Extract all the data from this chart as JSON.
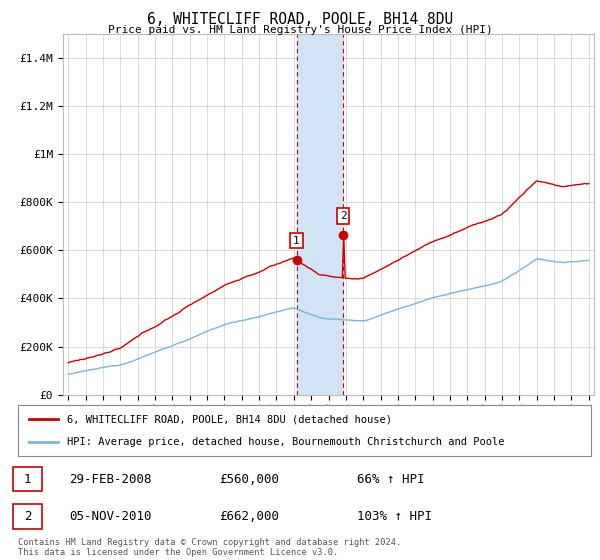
{
  "title": "6, WHITECLIFF ROAD, POOLE, BH14 8DU",
  "subtitle": "Price paid vs. HM Land Registry's House Price Index (HPI)",
  "ylabel_ticks": [
    "£0",
    "£200K",
    "£400K",
    "£600K",
    "£800K",
    "£1M",
    "£1.2M",
    "£1.4M"
  ],
  "ytick_values": [
    0,
    200000,
    400000,
    600000,
    800000,
    1000000,
    1200000,
    1400000
  ],
  "ylim": [
    0,
    1500000
  ],
  "transaction1_date": 2008.16,
  "transaction1_price": 560000,
  "transaction1_label": "1",
  "transaction2_date": 2010.84,
  "transaction2_price": 662000,
  "transaction2_label": "2",
  "hpi_line_color": "#7ab4d8",
  "property_line_color": "#cc0000",
  "vertical_band_color": "#d0e4f5",
  "grid_color": "#cccccc",
  "background_color": "#ffffff",
  "legend_label_property": "6, WHITECLIFF ROAD, POOLE, BH14 8DU (detached house)",
  "legend_label_hpi": "HPI: Average price, detached house, Bournemouth Christchurch and Poole",
  "table_row1": [
    "1",
    "29-FEB-2008",
    "£560,000",
    "66% ↑ HPI"
  ],
  "table_row2": [
    "2",
    "05-NOV-2010",
    "£662,000",
    "103% ↑ HPI"
  ],
  "footer": "Contains HM Land Registry data © Crown copyright and database right 2024.\nThis data is licensed under the Open Government Licence v3.0."
}
